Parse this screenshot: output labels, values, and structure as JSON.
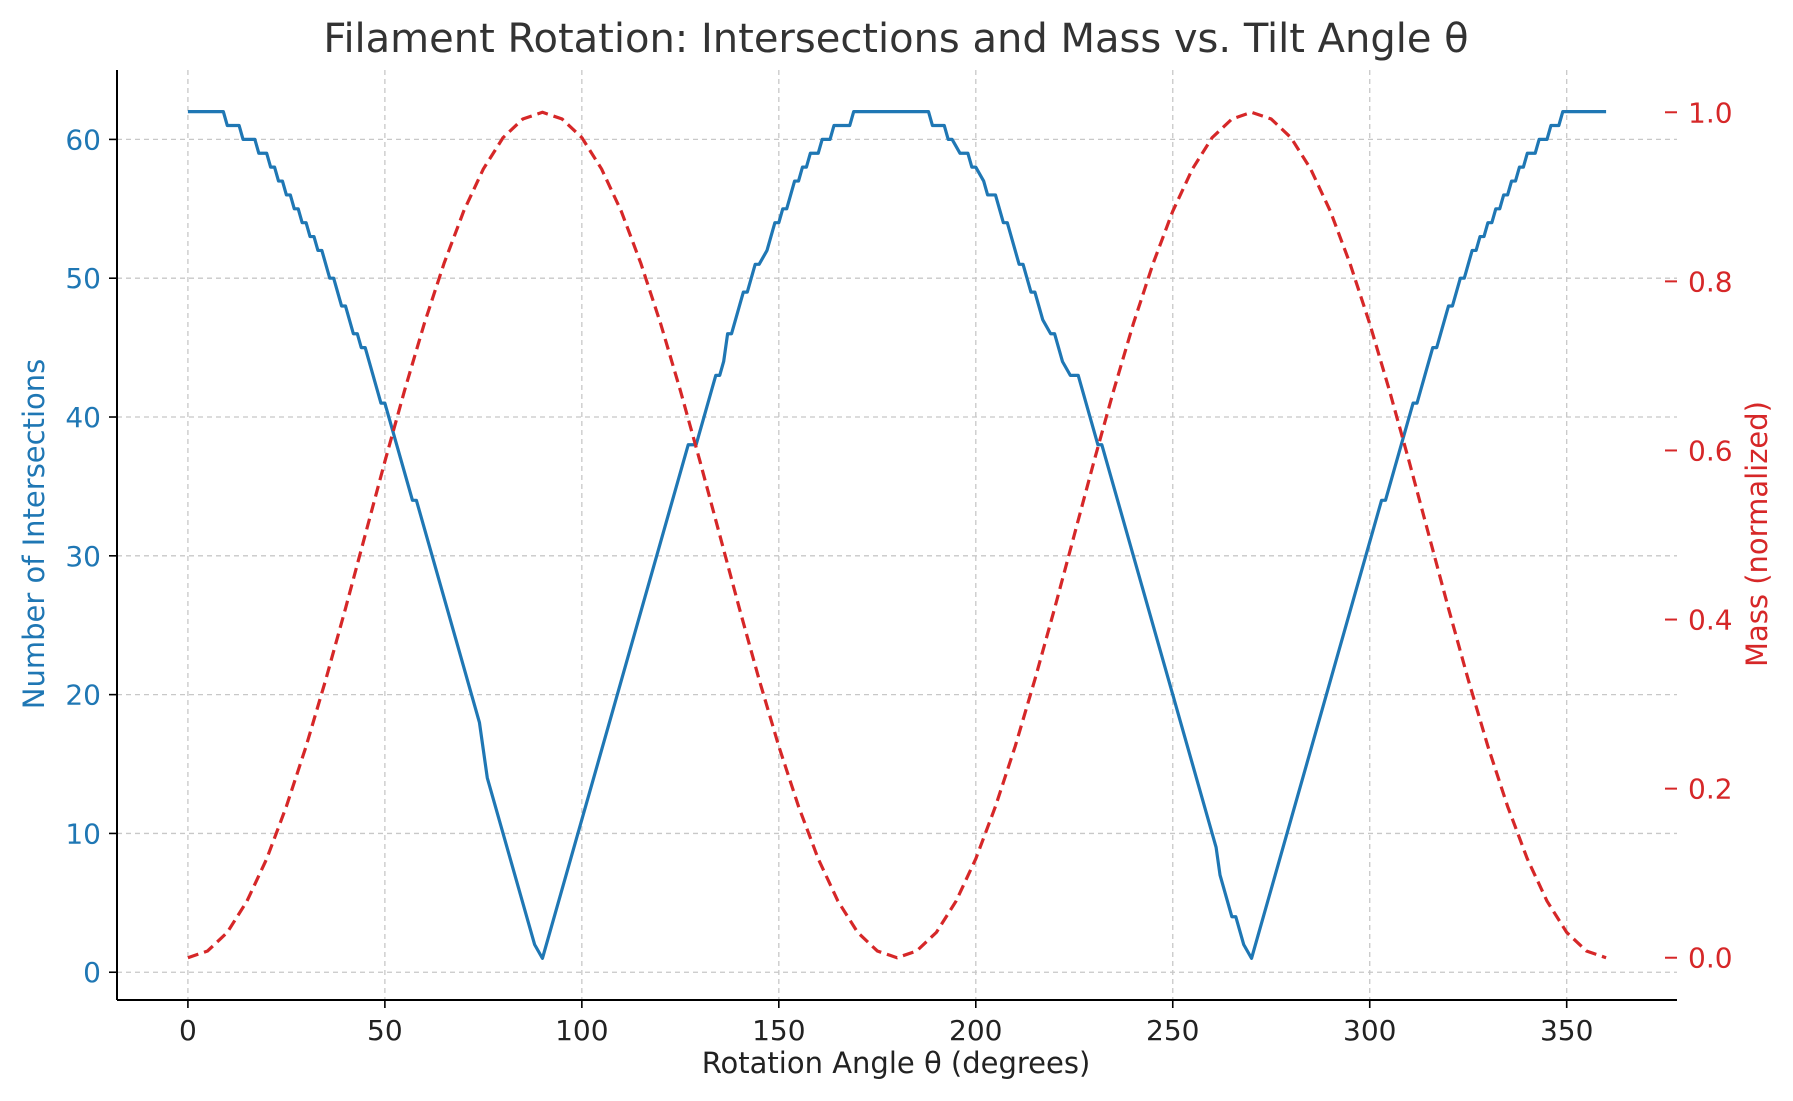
{
  "chart_data": {
    "type": "line",
    "title": "Filament Rotation: Intersections and Mass vs. Tilt Angle θ",
    "xlabel": "Rotation Angle θ (degrees)",
    "ylabel_left": "Number of Intersections",
    "ylabel_right": "Mass (normalized)",
    "xlim": [
      -18,
      378
    ],
    "ylim_left": [
      -2,
      65
    ],
    "ylim_right": [
      -0.05,
      1.05
    ],
    "xticks": [
      0,
      50,
      100,
      150,
      200,
      250,
      300,
      350
    ],
    "xtick_labels": [
      "0",
      "50",
      "100",
      "150",
      "200",
      "250",
      "300",
      "350"
    ],
    "yticks_left": [
      0,
      10,
      20,
      30,
      40,
      50,
      60
    ],
    "ytick_labels_left": [
      "0",
      "10",
      "20",
      "30",
      "40",
      "50",
      "60"
    ],
    "yticks_right": [
      0.0,
      0.2,
      0.4,
      0.6,
      0.8,
      1.0
    ],
    "ytick_labels_right": [
      "0.0",
      "0.2",
      "0.4",
      "0.6",
      "0.8",
      "1.0"
    ],
    "grid": true,
    "series": [
      {
        "axis": "left",
        "style": "solid",
        "color": "#1f77b4",
        "x": [
          0,
          9,
          10,
          13,
          14,
          17,
          18,
          20,
          21,
          22,
          23,
          24,
          25,
          26,
          27,
          28,
          29,
          30,
          31,
          32,
          33,
          34,
          36,
          37,
          39,
          40,
          42,
          43,
          44,
          45,
          47,
          48,
          49,
          50,
          51,
          53,
          54,
          55,
          56,
          57,
          58,
          60,
          62,
          64,
          66,
          68,
          70,
          72,
          74,
          75,
          76,
          80,
          84,
          88,
          90,
          92,
          96,
          100,
          104,
          108,
          112,
          116,
          120,
          124,
          127,
          128,
          129,
          131,
          133,
          134,
          135,
          136,
          137,
          138,
          140,
          141,
          142,
          143,
          144,
          145,
          147,
          148,
          149,
          150,
          151,
          152,
          153,
          154,
          155,
          156,
          157,
          158,
          160,
          161,
          162,
          163,
          164,
          166,
          168,
          169,
          170,
          171,
          172,
          188,
          189,
          190,
          192,
          193,
          194,
          196,
          197,
          198,
          199,
          200,
          202,
          203,
          205,
          206,
          207,
          208,
          210,
          211,
          212,
          213,
          214,
          215,
          216,
          217,
          219,
          220,
          221,
          222,
          224,
          226,
          228,
          231,
          232,
          233,
          236,
          240,
          244,
          248,
          252,
          256,
          260,
          261,
          262,
          263,
          264,
          265,
          266,
          267,
          268,
          270,
          272,
          274,
          276,
          280,
          284,
          288,
          292,
          296,
          300,
          302,
          303,
          304,
          305,
          306,
          307,
          308,
          309,
          310,
          311,
          312,
          313,
          314,
          315,
          316,
          317,
          318,
          319,
          320,
          321,
          322,
          323,
          324,
          325,
          326,
          327,
          328,
          329,
          330,
          331,
          332,
          333,
          334,
          335,
          336,
          337,
          338,
          339,
          340,
          341,
          342,
          343,
          344,
          345,
          346,
          347,
          348,
          349,
          350,
          351,
          352,
          353,
          360
        ],
        "y": [
          62,
          62,
          61,
          61,
          60,
          60,
          59,
          59,
          58,
          58,
          57,
          57,
          56,
          56,
          55,
          55,
          54,
          54,
          53,
          53,
          52,
          52,
          50,
          50,
          48,
          48,
          46,
          46,
          45,
          45,
          43,
          42,
          41,
          41,
          40,
          38,
          37,
          36,
          35,
          34,
          34,
          32,
          30,
          28,
          26,
          24,
          22,
          20,
          18,
          16,
          14,
          10,
          6,
          2,
          1,
          3,
          7,
          11,
          15,
          19,
          23,
          27,
          31,
          35,
          38,
          38,
          38,
          40,
          42,
          43,
          43,
          44,
          46,
          46,
          48,
          49,
          49,
          50,
          51,
          51,
          52,
          53,
          54,
          54,
          55,
          55,
          56,
          57,
          57,
          58,
          58,
          59,
          59,
          60,
          60,
          60,
          61,
          61,
          61,
          62,
          62,
          62,
          62,
          62,
          61,
          61,
          61,
          60,
          60,
          59,
          59,
          59,
          58,
          58,
          57,
          56,
          56,
          55,
          54,
          54,
          52,
          51,
          51,
          50,
          49,
          49,
          48,
          47,
          46,
          46,
          45,
          44,
          43,
          43,
          41,
          38,
          38,
          37,
          34,
          30,
          26,
          22,
          18,
          14,
          10,
          9,
          7,
          6,
          5,
          4,
          4,
          3,
          2,
          1,
          3,
          5,
          7,
          11,
          15,
          19,
          23,
          27,
          31,
          33,
          34,
          34,
          35,
          36,
          37,
          38,
          39,
          40,
          41,
          41,
          42,
          43,
          44,
          45,
          45,
          46,
          47,
          48,
          48,
          49,
          50,
          50,
          51,
          52,
          52,
          53,
          53,
          54,
          54,
          55,
          55,
          56,
          56,
          57,
          57,
          58,
          58,
          59,
          59,
          59,
          60,
          60,
          60,
          61,
          61,
          61,
          62,
          62,
          62,
          62,
          62,
          62
        ]
      },
      {
        "axis": "right",
        "style": "dashed",
        "color": "#d62728",
        "x": [
          0,
          5,
          10,
          15,
          20,
          25,
          30,
          35,
          40,
          45,
          50,
          55,
          60,
          65,
          70,
          75,
          80,
          85,
          90,
          95,
          100,
          105,
          110,
          115,
          120,
          125,
          130,
          135,
          140,
          145,
          150,
          155,
          160,
          165,
          170,
          175,
          180,
          185,
          190,
          195,
          200,
          205,
          210,
          215,
          220,
          225,
          230,
          235,
          240,
          245,
          250,
          255,
          260,
          265,
          270,
          275,
          280,
          285,
          290,
          295,
          300,
          305,
          310,
          315,
          320,
          325,
          330,
          335,
          340,
          345,
          350,
          355,
          360
        ],
        "y": [
          0.0,
          0.008,
          0.03,
          0.067,
          0.117,
          0.179,
          0.25,
          0.329,
          0.413,
          0.5,
          0.587,
          0.671,
          0.75,
          0.821,
          0.883,
          0.933,
          0.97,
          0.992,
          1.0,
          0.992,
          0.97,
          0.933,
          0.883,
          0.821,
          0.75,
          0.671,
          0.587,
          0.5,
          0.413,
          0.329,
          0.25,
          0.179,
          0.117,
          0.067,
          0.03,
          0.008,
          0.0,
          0.008,
          0.03,
          0.067,
          0.117,
          0.179,
          0.25,
          0.329,
          0.413,
          0.5,
          0.587,
          0.671,
          0.75,
          0.821,
          0.883,
          0.933,
          0.97,
          0.992,
          1.0,
          0.992,
          0.97,
          0.933,
          0.883,
          0.821,
          0.75,
          0.671,
          0.587,
          0.5,
          0.413,
          0.329,
          0.25,
          0.179,
          0.117,
          0.067,
          0.03,
          0.008,
          0.0
        ]
      }
    ]
  }
}
